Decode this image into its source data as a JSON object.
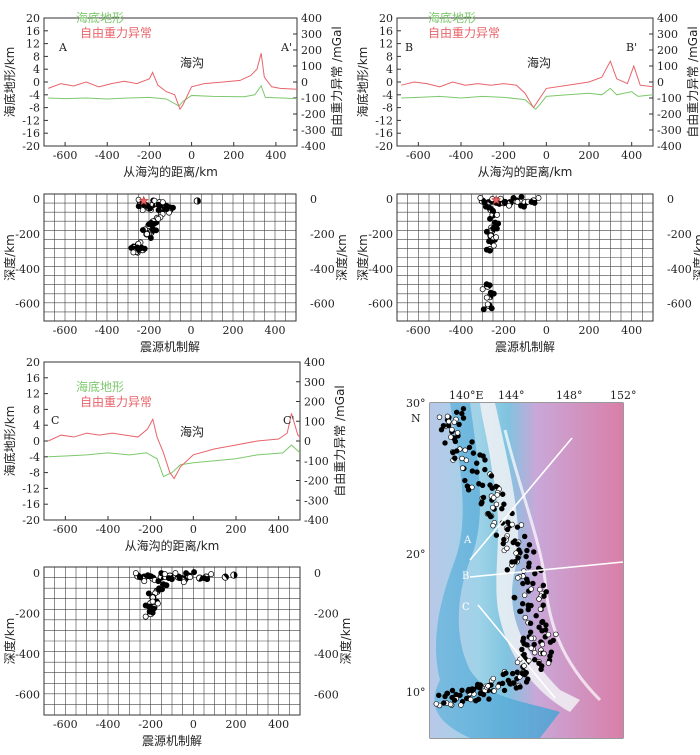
{
  "legend": {
    "topo": "海底地形",
    "gravity": "自由重力异常"
  },
  "colors": {
    "topo": "#7ec86e",
    "gravity": "#e8646a",
    "frame": "#333333",
    "grid": "#444444"
  },
  "trench_label": "海沟",
  "topo_axis_label": "海底地形/km",
  "gravity_axis_label": "自由重力异常 /mGal",
  "distance_axis_label": "从海沟的距离/km",
  "depth_axis_label": "深度/km",
  "focal_label": "震源机制解",
  "profiles": [
    {
      "id": "A",
      "start": "A",
      "end": "A'",
      "topo": [
        [
          -680,
          -5
        ],
        [
          -600,
          -5.2
        ],
        [
          -500,
          -5
        ],
        [
          -400,
          -5.3
        ],
        [
          -300,
          -5
        ],
        [
          -200,
          -4.8
        ],
        [
          -120,
          -5.3
        ],
        [
          -60,
          -7.5
        ],
        [
          -40,
          -6
        ],
        [
          0,
          -4.2
        ],
        [
          100,
          -4.5
        ],
        [
          250,
          -4.6
        ],
        [
          300,
          -4
        ],
        [
          330,
          -1.2
        ],
        [
          350,
          -4.8
        ],
        [
          500,
          -5.2
        ]
      ],
      "gravity": [
        [
          -680,
          -40
        ],
        [
          -620,
          -10
        ],
        [
          -560,
          -25
        ],
        [
          -500,
          0
        ],
        [
          -440,
          -30
        ],
        [
          -380,
          -10
        ],
        [
          -320,
          5
        ],
        [
          -260,
          -10
        ],
        [
          -200,
          20
        ],
        [
          -185,
          60
        ],
        [
          -160,
          -20
        ],
        [
          -120,
          -60
        ],
        [
          -80,
          -80
        ],
        [
          -55,
          -170
        ],
        [
          -40,
          -140
        ],
        [
          0,
          -30
        ],
        [
          60,
          -10
        ],
        [
          150,
          0
        ],
        [
          230,
          10
        ],
        [
          280,
          40
        ],
        [
          310,
          80
        ],
        [
          330,
          180
        ],
        [
          345,
          30
        ],
        [
          380,
          -30
        ],
        [
          420,
          -40
        ],
        [
          500,
          -45
        ]
      ],
      "quakes": [
        [
          -240,
          -20
        ],
        [
          -230,
          -40
        ],
        [
          -200,
          -50
        ],
        [
          -180,
          -30
        ],
        [
          -150,
          -20
        ],
        [
          -120,
          -40
        ],
        [
          -100,
          -60
        ],
        [
          -140,
          -80
        ],
        [
          -160,
          -110
        ],
        [
          -180,
          -130
        ],
        [
          -200,
          -150
        ],
        [
          -190,
          -190
        ],
        [
          -210,
          -200
        ],
        [
          -250,
          -260
        ],
        [
          -270,
          -280
        ],
        [
          -230,
          -290
        ],
        [
          -260,
          -300
        ],
        [
          30,
          -10
        ]
      ],
      "star": [
        -225,
        -10
      ]
    },
    {
      "id": "B",
      "start": "B",
      "end": "B'",
      "topo": [
        [
          -680,
          -5
        ],
        [
          -600,
          -4.8
        ],
        [
          -500,
          -4.5
        ],
        [
          -400,
          -5
        ],
        [
          -300,
          -4.5
        ],
        [
          -200,
          -4.8
        ],
        [
          -100,
          -5.5
        ],
        [
          -50,
          -8.5
        ],
        [
          -30,
          -7
        ],
        [
          0,
          -4.5
        ],
        [
          100,
          -4
        ],
        [
          200,
          -3.5
        ],
        [
          260,
          -4
        ],
        [
          300,
          -2
        ],
        [
          330,
          -4
        ],
        [
          400,
          -3
        ],
        [
          430,
          -4.5
        ],
        [
          500,
          -4
        ]
      ],
      "gravity": [
        [
          -680,
          -20
        ],
        [
          -620,
          0
        ],
        [
          -560,
          -10
        ],
        [
          -500,
          -30
        ],
        [
          -440,
          0
        ],
        [
          -380,
          -20
        ],
        [
          -320,
          -10
        ],
        [
          -260,
          -20
        ],
        [
          -200,
          -10
        ],
        [
          -140,
          -20
        ],
        [
          -100,
          -70
        ],
        [
          -60,
          -160
        ],
        [
          -40,
          -120
        ],
        [
          0,
          -40
        ],
        [
          100,
          -20
        ],
        [
          200,
          0
        ],
        [
          260,
          30
        ],
        [
          300,
          130
        ],
        [
          330,
          20
        ],
        [
          380,
          -10
        ],
        [
          410,
          100
        ],
        [
          440,
          -20
        ],
        [
          500,
          -30
        ]
      ],
      "quakes": [
        [
          -300,
          -10
        ],
        [
          -270,
          -20
        ],
        [
          -260,
          -60
        ],
        [
          -250,
          -90
        ],
        [
          -230,
          -10
        ],
        [
          -200,
          -20
        ],
        [
          -170,
          -20
        ],
        [
          -140,
          -10
        ],
        [
          -100,
          -20
        ],
        [
          -60,
          -10
        ],
        [
          -240,
          -140
        ],
        [
          -255,
          -180
        ],
        [
          -260,
          -210
        ],
        [
          -245,
          -230
        ],
        [
          -265,
          -290
        ],
        [
          -275,
          -500
        ],
        [
          -265,
          -560
        ],
        [
          -270,
          -610
        ]
      ],
      "star": [
        -235,
        -5
      ]
    },
    {
      "id": "C",
      "start": "C",
      "end": "C'",
      "topo": [
        [
          -680,
          -4
        ],
        [
          -600,
          -3.8
        ],
        [
          -500,
          -3.5
        ],
        [
          -400,
          -3
        ],
        [
          -300,
          -3.5
        ],
        [
          -220,
          -3
        ],
        [
          -170,
          -4.5
        ],
        [
          -140,
          -9
        ],
        [
          -100,
          -8
        ],
        [
          -60,
          -6
        ],
        [
          0,
          -5.5
        ],
        [
          100,
          -5
        ],
        [
          200,
          -4.5
        ],
        [
          300,
          -3.5
        ],
        [
          420,
          -3
        ],
        [
          460,
          -1
        ],
        [
          500,
          -3
        ]
      ],
      "gravity": [
        [
          -680,
          0
        ],
        [
          -620,
          30
        ],
        [
          -560,
          20
        ],
        [
          -500,
          40
        ],
        [
          -440,
          30
        ],
        [
          -380,
          40
        ],
        [
          -320,
          30
        ],
        [
          -260,
          20
        ],
        [
          -215,
          60
        ],
        [
          -190,
          110
        ],
        [
          -170,
          20
        ],
        [
          -140,
          -60
        ],
        [
          -110,
          -160
        ],
        [
          -90,
          -190
        ],
        [
          -60,
          -130
        ],
        [
          0,
          -70
        ],
        [
          100,
          -40
        ],
        [
          200,
          -20
        ],
        [
          300,
          0
        ],
        [
          400,
          10
        ],
        [
          440,
          40
        ],
        [
          460,
          140
        ],
        [
          490,
          30
        ],
        [
          500,
          20
        ]
      ],
      "quakes": [
        [
          -260,
          -15
        ],
        [
          -230,
          -20
        ],
        [
          -190,
          -25
        ],
        [
          -150,
          -20
        ],
        [
          -110,
          -15
        ],
        [
          -70,
          -20
        ],
        [
          -40,
          -30
        ],
        [
          -20,
          -15
        ],
        [
          30,
          -25
        ],
        [
          60,
          -20
        ],
        [
          -140,
          -60
        ],
        [
          -170,
          -90
        ],
        [
          -190,
          -120
        ],
        [
          -200,
          -150
        ],
        [
          -185,
          -170
        ],
        [
          -200,
          -200
        ],
        [
          150,
          -20
        ],
        [
          190,
          -10
        ]
      ]
    }
  ],
  "map": {
    "lon_labels": [
      "140°E",
      "144°",
      "148°",
      "152°"
    ],
    "lat_labels": [
      "30°",
      "20°",
      "10°"
    ],
    "north": "N",
    "profile_labels": [
      "A",
      "B",
      "C"
    ]
  },
  "chart_data": [
    {
      "type": "line",
      "title": "A–A'",
      "xlabel": "从海沟的距离/km",
      "ylabel": "海底地形/km",
      "y2label": "自由重力异常 /mGal",
      "xlim": [
        -700,
        500
      ],
      "ylim": [
        -20,
        20
      ],
      "y2lim": [
        -400,
        400
      ],
      "series": [
        {
          "name": "海底地形",
          "axis": "left",
          "x": [
            -680,
            -600,
            -500,
            -400,
            -300,
            -200,
            -120,
            -60,
            -40,
            0,
            100,
            250,
            300,
            330,
            350,
            500
          ],
          "y": [
            -5,
            -5.2,
            -5,
            -5.3,
            -5,
            -4.8,
            -5.3,
            -7.5,
            -6,
            -4.2,
            -4.5,
            -4.6,
            -4,
            -1.2,
            -4.8,
            -5.2
          ]
        },
        {
          "name": "自由重力异常",
          "axis": "right",
          "x": [
            -680,
            -620,
            -560,
            -500,
            -440,
            -380,
            -320,
            -260,
            -200,
            -185,
            -160,
            -120,
            -80,
            -55,
            -40,
            0,
            60,
            150,
            230,
            280,
            310,
            330,
            345,
            380,
            420,
            500
          ],
          "y": [
            -40,
            -10,
            -25,
            0,
            -30,
            -10,
            5,
            -10,
            20,
            60,
            -20,
            -60,
            -80,
            -170,
            -140,
            -30,
            -10,
            0,
            10,
            40,
            80,
            180,
            30,
            -30,
            -40,
            -45
          ]
        }
      ]
    },
    {
      "type": "scatter",
      "title": "A–A' 震源机制解",
      "ylabel": "深度/km",
      "xlim": [
        -700,
        500
      ],
      "ylim": [
        -700,
        30
      ],
      "x": [
        -240,
        -230,
        -200,
        -180,
        -150,
        -120,
        -100,
        -140,
        -160,
        -180,
        -200,
        -190,
        -210,
        -250,
        -270,
        -230,
        -260,
        30
      ],
      "y": [
        -20,
        -40,
        -50,
        -30,
        -20,
        -40,
        -60,
        -80,
        -110,
        -130,
        -150,
        -190,
        -200,
        -260,
        -280,
        -290,
        -300,
        -10
      ]
    },
    {
      "type": "line",
      "title": "B–B'",
      "xlabel": "从海沟的距离/km",
      "ylabel": "海底地形/km",
      "y2label": "自由重力异常 /mGal",
      "xlim": [
        -700,
        500
      ],
      "ylim": [
        -20,
        20
      ],
      "y2lim": [
        -400,
        400
      ],
      "series": [
        {
          "name": "海底地形",
          "axis": "left",
          "x": [
            -680,
            -600,
            -500,
            -400,
            -300,
            -200,
            -100,
            -50,
            -30,
            0,
            100,
            200,
            260,
            300,
            330,
            400,
            430,
            500
          ],
          "y": [
            -5,
            -4.8,
            -4.5,
            -5,
            -4.5,
            -4.8,
            -5.5,
            -8.5,
            -7,
            -4.5,
            -4,
            -3.5,
            -4,
            -2,
            -4,
            -3,
            -4.5,
            -4
          ]
        },
        {
          "name": "自由重力异常",
          "axis": "right",
          "x": [
            -680,
            -620,
            -560,
            -500,
            -440,
            -380,
            -320,
            -260,
            -200,
            -140,
            -100,
            -60,
            -40,
            0,
            100,
            200,
            260,
            300,
            330,
            380,
            410,
            440,
            500
          ],
          "y": [
            -20,
            0,
            -10,
            -30,
            0,
            -20,
            -10,
            -20,
            -10,
            -20,
            -70,
            -160,
            -120,
            -40,
            -20,
            0,
            30,
            130,
            20,
            -10,
            100,
            -20,
            -30
          ]
        }
      ]
    },
    {
      "type": "scatter",
      "title": "B–B' 震源机制解",
      "ylabel": "深度/km",
      "xlim": [
        -700,
        500
      ],
      "ylim": [
        -700,
        30
      ],
      "x": [
        -300,
        -270,
        -260,
        -250,
        -230,
        -200,
        -170,
        -140,
        -100,
        -60,
        -240,
        -255,
        -260,
        -245,
        -265,
        -275,
        -265,
        -270
      ],
      "y": [
        -10,
        -20,
        -60,
        -90,
        -10,
        -20,
        -20,
        -10,
        -20,
        -10,
        -140,
        -180,
        -210,
        -230,
        -290,
        -500,
        -560,
        -610
      ]
    },
    {
      "type": "line",
      "title": "C–C'",
      "xlabel": "从海沟的距离/km",
      "ylabel": "海底地形/km",
      "y2label": "自由重力异常 /mGal",
      "xlim": [
        -700,
        500
      ],
      "ylim": [
        -20,
        20
      ],
      "y2lim": [
        -400,
        400
      ],
      "series": [
        {
          "name": "海底地形",
          "axis": "left",
          "x": [
            -680,
            -600,
            -500,
            -400,
            -300,
            -220,
            -170,
            -140,
            -100,
            -60,
            0,
            100,
            200,
            300,
            420,
            460,
            500
          ],
          "y": [
            -4,
            -3.8,
            -3.5,
            -3,
            -3.5,
            -3,
            -4.5,
            -9,
            -8,
            -6,
            -5.5,
            -5,
            -4.5,
            -3.5,
            -3,
            -1,
            -3
          ]
        },
        {
          "name": "自由重力异常",
          "axis": "right",
          "x": [
            -680,
            -620,
            -560,
            -500,
            -440,
            -380,
            -320,
            -260,
            -215,
            -190,
            -170,
            -140,
            -110,
            -90,
            -60,
            0,
            100,
            200,
            300,
            400,
            440,
            460,
            490,
            500
          ],
          "y": [
            0,
            30,
            20,
            40,
            30,
            40,
            30,
            20,
            60,
            110,
            20,
            -60,
            -160,
            -190,
            -130,
            -70,
            -40,
            -20,
            0,
            10,
            40,
            140,
            30,
            20
          ]
        }
      ]
    },
    {
      "type": "scatter",
      "title": "C–C' 震源机制解",
      "ylabel": "深度/km",
      "xlim": [
        -700,
        500
      ],
      "ylim": [
        -700,
        30
      ],
      "x": [
        -260,
        -230,
        -190,
        -150,
        -110,
        -70,
        -40,
        -20,
        30,
        60,
        -140,
        -170,
        -190,
        -200,
        -185,
        -200,
        150,
        190
      ],
      "y": [
        -15,
        -20,
        -25,
        -20,
        -15,
        -20,
        -30,
        -15,
        -25,
        -20,
        -60,
        -90,
        -120,
        -150,
        -170,
        -200,
        -20,
        -10
      ]
    }
  ]
}
